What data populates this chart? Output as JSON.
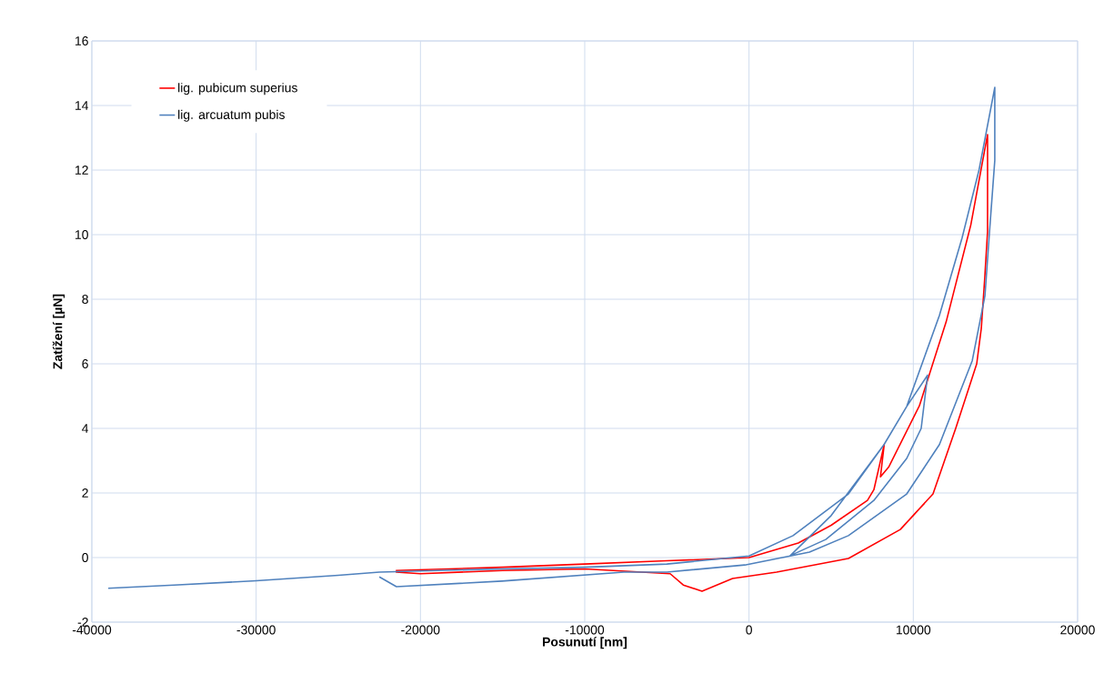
{
  "chart_data": {
    "type": "line",
    "xlabel": "Posunutí [nm]",
    "ylabel": "Zatížení [µN]",
    "xlim": [
      -40000,
      20000
    ],
    "ylim": [
      -2,
      16
    ],
    "xticks": [
      -40000,
      -30000,
      -20000,
      -10000,
      0,
      10000,
      20000
    ],
    "yticks": [
      -2,
      0,
      2,
      4,
      6,
      8,
      10,
      12,
      14,
      16
    ],
    "grid": true,
    "legend": "top left",
    "marker": "none",
    "line_style": "solid",
    "series": [
      {
        "name": "lig. pubicum superius",
        "color": "#ff0000",
        "x": [
          -21500,
          -15000,
          -10000,
          -5000,
          0,
          3000,
          5000,
          7210,
          7600,
          8230,
          8000,
          8500,
          10370,
          12000,
          13500,
          14520,
          14520,
          14340,
          14140,
          13860,
          12580,
          11200,
          9210,
          6050,
          1680,
          -1000,
          -2860,
          -4000,
          -4800,
          -10000,
          -15000,
          -20000,
          -21500
        ],
        "values": [
          -0.4,
          -0.3,
          -0.2,
          -0.1,
          0.0,
          0.45,
          1.0,
          1.77,
          2.1,
          3.5,
          2.5,
          2.8,
          4.7,
          7.3,
          10.3,
          13.1,
          10.1,
          8.6,
          7.1,
          6.0,
          4.0,
          1.97,
          0.87,
          -0.03,
          -0.45,
          -0.65,
          -1.04,
          -0.85,
          -0.5,
          -0.35,
          -0.4,
          -0.5,
          -0.45
        ]
      },
      {
        "name": "lig. arcuatum pubis",
        "color": "#4f81bd",
        "x": [
          -39000,
          -35000,
          -30000,
          -25000,
          -22500,
          -15000,
          -10000,
          -5000,
          0,
          2680,
          6050,
          8220,
          9600,
          10870,
          10480,
          9600,
          7600,
          4670,
          2510,
          5000,
          8220,
          9600,
          11590,
          12970,
          14000,
          14960,
          14960,
          14640,
          14360,
          13590,
          11590,
          9600,
          6050,
          3680,
          -260,
          -5000,
          -7620,
          -15040,
          -21460,
          -22500
        ],
        "values": [
          -0.95,
          -0.85,
          -0.72,
          -0.55,
          -0.45,
          -0.35,
          -0.3,
          -0.2,
          0.05,
          0.68,
          1.97,
          3.5,
          4.68,
          5.65,
          4.0,
          3.07,
          1.77,
          0.56,
          0.06,
          1.3,
          3.5,
          4.68,
          7.5,
          9.9,
          12.0,
          14.56,
          12.3,
          10.1,
          8.1,
          6.1,
          3.5,
          1.97,
          0.68,
          0.17,
          -0.23,
          -0.45,
          -0.45,
          -0.73,
          -0.9,
          -0.6
        ]
      }
    ]
  }
}
